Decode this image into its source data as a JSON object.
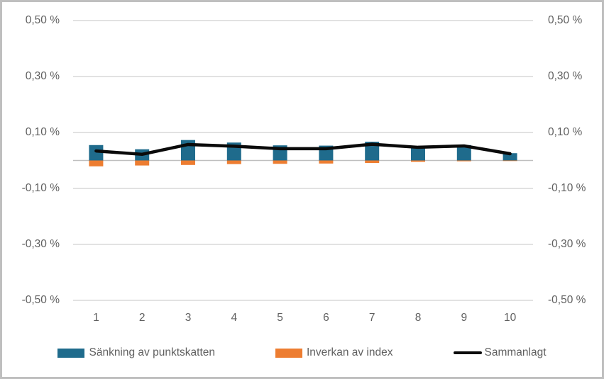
{
  "chart_data": {
    "type": "combo",
    "title": "",
    "xlabel": "",
    "ylabel": "",
    "unit": "%",
    "categories": [
      "1",
      "2",
      "3",
      "4",
      "5",
      "6",
      "7",
      "8",
      "9",
      "10"
    ],
    "series": [
      {
        "name": "Sänkning av punktskatten",
        "type": "bar",
        "color": "#1F6B8C",
        "values": [
          0.055,
          0.04,
          0.073,
          0.064,
          0.054,
          0.053,
          0.067,
          0.052,
          0.055,
          0.026
        ]
      },
      {
        "name": "Inverkan av index",
        "type": "bar",
        "color": "#ED7D31",
        "values": [
          -0.021,
          -0.018,
          -0.016,
          -0.013,
          -0.012,
          -0.011,
          -0.009,
          -0.005,
          -0.003,
          -0.002
        ]
      },
      {
        "name": "Sammanlagt",
        "type": "line",
        "color": "#0a0a0a",
        "values": [
          0.034,
          0.022,
          0.057,
          0.051,
          0.042,
          0.042,
          0.058,
          0.047,
          0.052,
          0.024
        ]
      }
    ],
    "y_axis": {
      "min": -0.5,
      "max": 0.5,
      "tick_values": [
        0.5,
        0.3,
        0.1,
        -0.1,
        -0.3,
        -0.5
      ],
      "tick_labels": [
        "0,50 %",
        "0,30 %",
        "0,10 %",
        "-0,10 %",
        "-0,30 %",
        "-0,50 %"
      ],
      "dual_axis": true
    },
    "grid": true,
    "gridline_color": "#d9d9d9",
    "zero_line_color": "#bfbfbf",
    "legend_position": "bottom",
    "frame_border_color": "#bfbfbf"
  }
}
